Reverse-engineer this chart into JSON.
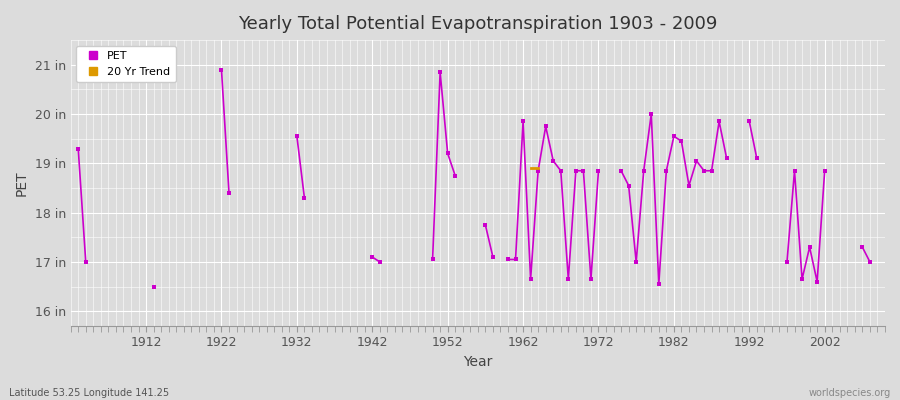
{
  "title": "Yearly Total Potential Evapotranspiration 1903 - 2009",
  "xlabel": "Year",
  "ylabel": "PET",
  "footer_left": "Latitude 53.25 Longitude 141.25",
  "footer_right": "worldspecies.org",
  "bg_color": "#dcdcdc",
  "plot_bg_color": "#dcdcdc",
  "pet_color": "#cc00cc",
  "trend_color": "#dd9900",
  "ylim": [
    15.7,
    21.5
  ],
  "yticks": [
    16,
    17,
    18,
    19,
    20,
    21
  ],
  "ytick_labels": [
    "16 in",
    "17 in",
    "18 in",
    "19 in",
    "20 in",
    "21 in"
  ],
  "xlim": [
    1902,
    2010
  ],
  "xticks": [
    1912,
    1922,
    1932,
    1942,
    1952,
    1962,
    1972,
    1982,
    1992,
    2002
  ],
  "pet_data": [
    [
      1903,
      19.3
    ],
    [
      1904,
      17.0
    ],
    [
      1913,
      16.5
    ],
    [
      1922,
      20.9
    ],
    [
      1923,
      18.4
    ],
    [
      1932,
      19.55
    ],
    [
      1933,
      18.3
    ],
    [
      1942,
      17.1
    ],
    [
      1943,
      17.0
    ],
    [
      1950,
      17.05
    ],
    [
      1951,
      20.85
    ],
    [
      1952,
      19.2
    ],
    [
      1953,
      18.75
    ],
    [
      1957,
      17.75
    ],
    [
      1958,
      17.1
    ],
    [
      1960,
      17.05
    ],
    [
      1961,
      17.05
    ],
    [
      1962,
      19.85
    ],
    [
      1963,
      16.65
    ],
    [
      1964,
      18.85
    ],
    [
      1965,
      19.75
    ],
    [
      1966,
      19.05
    ],
    [
      1967,
      18.85
    ],
    [
      1968,
      16.65
    ],
    [
      1969,
      18.85
    ],
    [
      1970,
      18.85
    ],
    [
      1971,
      16.65
    ],
    [
      1972,
      18.85
    ],
    [
      1975,
      18.85
    ],
    [
      1976,
      18.55
    ],
    [
      1977,
      17.0
    ],
    [
      1978,
      18.85
    ],
    [
      1979,
      20.0
    ],
    [
      1980,
      16.55
    ],
    [
      1981,
      18.85
    ],
    [
      1982,
      19.55
    ],
    [
      1983,
      19.45
    ],
    [
      1984,
      18.55
    ],
    [
      1985,
      19.05
    ],
    [
      1986,
      18.85
    ],
    [
      1987,
      18.85
    ],
    [
      1988,
      19.85
    ],
    [
      1989,
      19.1
    ],
    [
      1992,
      19.85
    ],
    [
      1993,
      19.1
    ],
    [
      1997,
      17.0
    ],
    [
      1998,
      18.85
    ],
    [
      1999,
      16.65
    ],
    [
      2000,
      17.3
    ],
    [
      2001,
      16.6
    ],
    [
      2002,
      18.85
    ],
    [
      2007,
      17.3
    ],
    [
      2008,
      17.0
    ]
  ],
  "trend_data": [
    [
      1963,
      18.9
    ],
    [
      1964,
      18.9
    ]
  ]
}
